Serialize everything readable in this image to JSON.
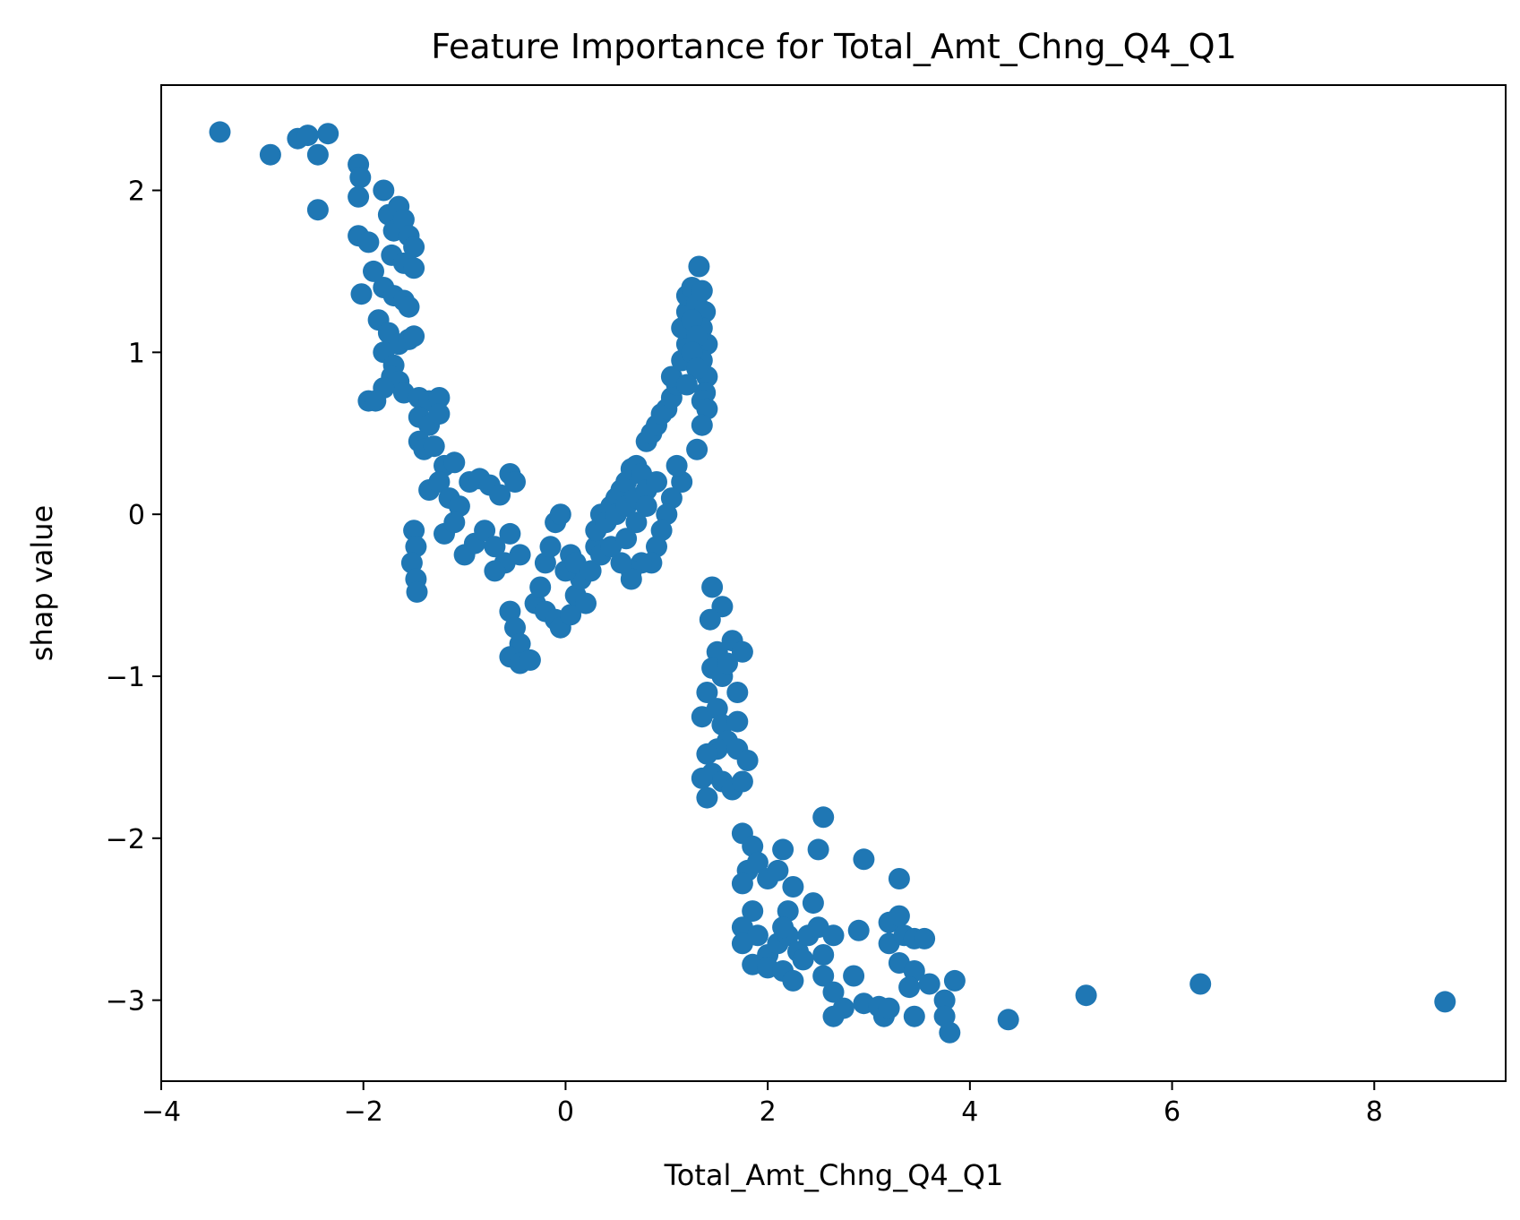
{
  "chart_data": {
    "type": "scatter",
    "title": "Feature Importance for Total_Amt_Chng_Q4_Q1",
    "xlabel": "Total_Amt_Chng_Q4_Q1",
    "ylabel": "shap value",
    "xlim": [
      -4.0,
      9.3
    ],
    "ylim": [
      -3.5,
      2.65
    ],
    "xticks": [
      -4,
      -2,
      0,
      2,
      4,
      6,
      8
    ],
    "xtick_labels": [
      "−4",
      "−2",
      "0",
      "2",
      "4",
      "6",
      "8"
    ],
    "yticks": [
      -3,
      -2,
      -1,
      0,
      1,
      2
    ],
    "ytick_labels": [
      "−3",
      "−2",
      "−1",
      "0",
      "1",
      "2"
    ],
    "grid": false,
    "legend": false,
    "marker_color": "#1f77b4",
    "series": [
      {
        "points": [
          [
            -3.42,
            2.36
          ],
          [
            -2.92,
            2.22
          ],
          [
            -2.65,
            2.32
          ],
          [
            -2.55,
            2.34
          ],
          [
            -2.45,
            2.22
          ],
          [
            -2.35,
            2.35
          ],
          [
            -2.45,
            1.88
          ],
          [
            -2.05,
            2.16
          ],
          [
            -2.03,
            2.08
          ],
          [
            -2.05,
            1.96
          ],
          [
            -2.05,
            1.72
          ],
          [
            -1.95,
            1.68
          ],
          [
            -1.9,
            1.5
          ],
          [
            -2.02,
            1.36
          ],
          [
            -1.8,
            2.0
          ],
          [
            -1.75,
            1.85
          ],
          [
            -1.7,
            1.75
          ],
          [
            -1.65,
            1.9
          ],
          [
            -1.6,
            1.82
          ],
          [
            -1.55,
            1.72
          ],
          [
            -1.5,
            1.65
          ],
          [
            -1.72,
            1.6
          ],
          [
            -1.6,
            1.55
          ],
          [
            -1.5,
            1.52
          ],
          [
            -1.8,
            1.4
          ],
          [
            -1.7,
            1.35
          ],
          [
            -1.6,
            1.32
          ],
          [
            -1.55,
            1.28
          ],
          [
            -1.85,
            1.2
          ],
          [
            -1.75,
            1.12
          ],
          [
            -1.65,
            1.05
          ],
          [
            -1.55,
            1.08
          ],
          [
            -1.5,
            1.1
          ],
          [
            -1.8,
            1.0
          ],
          [
            -1.7,
            0.92
          ],
          [
            -1.72,
            0.85
          ],
          [
            -1.65,
            0.82
          ],
          [
            -1.8,
            0.78
          ],
          [
            -1.6,
            0.75
          ],
          [
            -1.95,
            0.7
          ],
          [
            -1.88,
            0.7
          ],
          [
            -1.45,
            0.72
          ],
          [
            -1.35,
            0.7
          ],
          [
            -1.25,
            0.72
          ],
          [
            -1.45,
            0.6
          ],
          [
            -1.35,
            0.55
          ],
          [
            -1.25,
            0.62
          ],
          [
            -1.45,
            0.45
          ],
          [
            -1.4,
            0.4
          ],
          [
            -1.3,
            0.42
          ],
          [
            -1.2,
            0.3
          ],
          [
            -1.1,
            0.32
          ],
          [
            -1.35,
            0.15
          ],
          [
            -1.25,
            0.2
          ],
          [
            -1.15,
            0.1
          ],
          [
            -1.05,
            0.05
          ],
          [
            -0.95,
            0.2
          ],
          [
            -0.85,
            0.22
          ],
          [
            -0.75,
            0.18
          ],
          [
            -0.65,
            0.12
          ],
          [
            -0.55,
            0.25
          ],
          [
            -0.5,
            0.2
          ],
          [
            -1.2,
            -0.12
          ],
          [
            -1.1,
            -0.05
          ],
          [
            -1.0,
            -0.25
          ],
          [
            -0.9,
            -0.18
          ],
          [
            -0.8,
            -0.1
          ],
          [
            -0.7,
            -0.2
          ],
          [
            -0.6,
            -0.3
          ],
          [
            -0.7,
            -0.35
          ],
          [
            -0.55,
            -0.12
          ],
          [
            -0.45,
            -0.25
          ],
          [
            -1.5,
            -0.1
          ],
          [
            -1.48,
            -0.2
          ],
          [
            -1.52,
            -0.3
          ],
          [
            -1.48,
            -0.4
          ],
          [
            -1.47,
            -0.48
          ],
          [
            -0.55,
            -0.6
          ],
          [
            -0.5,
            -0.7
          ],
          [
            -0.45,
            -0.8
          ],
          [
            -0.55,
            -0.88
          ],
          [
            -0.45,
            -0.92
          ],
          [
            -0.35,
            -0.9
          ],
          [
            -0.3,
            -0.55
          ],
          [
            -0.25,
            -0.45
          ],
          [
            -0.2,
            -0.3
          ],
          [
            -0.15,
            -0.2
          ],
          [
            -0.1,
            -0.05
          ],
          [
            -0.05,
            0.0
          ],
          [
            -0.2,
            -0.6
          ],
          [
            -0.1,
            -0.65
          ],
          [
            -0.05,
            -0.7
          ],
          [
            0.05,
            -0.62
          ],
          [
            0.1,
            -0.5
          ],
          [
            0.15,
            -0.4
          ],
          [
            0.2,
            -0.55
          ],
          [
            0.0,
            -0.35
          ],
          [
            0.05,
            -0.25
          ],
          [
            0.1,
            -0.3
          ],
          [
            0.25,
            -0.35
          ],
          [
            0.3,
            -0.2
          ],
          [
            0.35,
            -0.25
          ],
          [
            0.3,
            -0.1
          ],
          [
            0.35,
            0.0
          ],
          [
            0.4,
            -0.05
          ],
          [
            0.45,
            0.05
          ],
          [
            0.5,
            0.1
          ],
          [
            0.55,
            0.15
          ],
          [
            0.6,
            0.2
          ],
          [
            0.65,
            0.28
          ],
          [
            0.7,
            0.3
          ],
          [
            0.75,
            0.25
          ],
          [
            0.8,
            0.45
          ],
          [
            0.85,
            0.5
          ],
          [
            0.9,
            0.55
          ],
          [
            0.95,
            0.62
          ],
          [
            1.0,
            0.65
          ],
          [
            1.05,
            0.72
          ],
          [
            1.1,
            0.8
          ],
          [
            1.05,
            0.85
          ],
          [
            1.15,
            0.95
          ],
          [
            1.2,
            1.05
          ],
          [
            1.15,
            1.15
          ],
          [
            1.2,
            1.25
          ],
          [
            1.2,
            1.35
          ],
          [
            1.25,
            1.4
          ],
          [
            1.3,
            1.3
          ],
          [
            1.35,
            1.38
          ],
          [
            1.38,
            1.25
          ],
          [
            1.35,
            1.15
          ],
          [
            1.4,
            1.05
          ],
          [
            1.35,
            0.95
          ],
          [
            1.4,
            0.85
          ],
          [
            1.38,
            0.75
          ],
          [
            1.35,
            0.7
          ],
          [
            1.4,
            0.65
          ],
          [
            1.35,
            0.55
          ],
          [
            1.3,
            0.4
          ],
          [
            1.32,
            1.53
          ],
          [
            1.25,
            1.2
          ],
          [
            1.3,
            1.1
          ],
          [
            1.25,
            1.0
          ],
          [
            1.3,
            0.9
          ],
          [
            1.2,
            0.8
          ],
          [
            1.15,
            0.2
          ],
          [
            1.1,
            0.3
          ],
          [
            1.05,
            0.1
          ],
          [
            1.0,
            0.0
          ],
          [
            0.95,
            -0.1
          ],
          [
            0.9,
            -0.2
          ],
          [
            0.85,
            -0.3
          ],
          [
            0.75,
            -0.3
          ],
          [
            0.65,
            -0.35
          ],
          [
            0.65,
            -0.4
          ],
          [
            0.55,
            -0.3
          ],
          [
            0.45,
            -0.2
          ],
          [
            0.5,
            0.0
          ],
          [
            0.6,
            0.05
          ],
          [
            0.7,
            0.1
          ],
          [
            0.8,
            0.15
          ],
          [
            0.9,
            0.2
          ],
          [
            0.8,
            0.05
          ],
          [
            0.7,
            -0.05
          ],
          [
            0.6,
            -0.15
          ],
          [
            1.45,
            -0.45
          ],
          [
            1.55,
            -0.57
          ],
          [
            1.43,
            -0.65
          ],
          [
            1.65,
            -0.78
          ],
          [
            1.75,
            -0.85
          ],
          [
            1.5,
            -0.85
          ],
          [
            1.45,
            -0.95
          ],
          [
            1.55,
            -1.0
          ],
          [
            1.6,
            -0.92
          ],
          [
            1.7,
            -1.1
          ],
          [
            1.4,
            -1.1
          ],
          [
            1.35,
            -1.25
          ],
          [
            1.5,
            -1.2
          ],
          [
            1.55,
            -1.3
          ],
          [
            1.7,
            -1.28
          ],
          [
            1.6,
            -1.4
          ],
          [
            1.5,
            -1.45
          ],
          [
            1.4,
            -1.48
          ],
          [
            1.7,
            -1.45
          ],
          [
            1.8,
            -1.52
          ],
          [
            1.45,
            -1.6
          ],
          [
            1.55,
            -1.65
          ],
          [
            1.65,
            -1.7
          ],
          [
            1.75,
            -1.65
          ],
          [
            1.35,
            -1.63
          ],
          [
            1.4,
            -1.75
          ],
          [
            1.75,
            -1.97
          ],
          [
            1.85,
            -2.05
          ],
          [
            1.8,
            -2.2
          ],
          [
            1.9,
            -2.15
          ],
          [
            2.0,
            -2.25
          ],
          [
            2.1,
            -2.2
          ],
          [
            2.15,
            -2.07
          ],
          [
            2.25,
            -2.3
          ],
          [
            1.75,
            -2.28
          ],
          [
            1.85,
            -2.45
          ],
          [
            1.75,
            -2.55
          ],
          [
            1.9,
            -2.6
          ],
          [
            1.75,
            -2.65
          ],
          [
            1.85,
            -2.78
          ],
          [
            2.0,
            -2.72
          ],
          [
            2.1,
            -2.65
          ],
          [
            2.2,
            -2.6
          ],
          [
            2.3,
            -2.7
          ],
          [
            2.4,
            -2.6
          ],
          [
            2.5,
            -2.55
          ],
          [
            2.45,
            -2.4
          ],
          [
            2.2,
            -2.45
          ],
          [
            2.15,
            -2.55
          ],
          [
            2.0,
            -2.8
          ],
          [
            2.15,
            -2.82
          ],
          [
            2.25,
            -2.88
          ],
          [
            2.35,
            -2.75
          ],
          [
            2.55,
            -2.72
          ],
          [
            2.65,
            -2.6
          ],
          [
            2.55,
            -2.85
          ],
          [
            2.55,
            -1.87
          ],
          [
            2.5,
            -2.07
          ],
          [
            2.65,
            -2.95
          ],
          [
            2.75,
            -3.05
          ],
          [
            2.65,
            -3.1
          ],
          [
            2.85,
            -2.85
          ],
          [
            2.9,
            -2.57
          ],
          [
            2.95,
            -2.13
          ],
          [
            2.95,
            -3.02
          ],
          [
            3.1,
            -3.04
          ],
          [
            3.15,
            -3.1
          ],
          [
            3.2,
            -3.05
          ],
          [
            3.3,
            -2.25
          ],
          [
            3.2,
            -2.52
          ],
          [
            3.3,
            -2.48
          ],
          [
            3.2,
            -2.65
          ],
          [
            3.35,
            -2.6
          ],
          [
            3.45,
            -2.62
          ],
          [
            3.55,
            -2.62
          ],
          [
            3.3,
            -2.77
          ],
          [
            3.45,
            -2.82
          ],
          [
            3.4,
            -2.92
          ],
          [
            3.6,
            -2.9
          ],
          [
            3.75,
            -3.0
          ],
          [
            3.75,
            -3.1
          ],
          [
            3.8,
            -3.2
          ],
          [
            3.45,
            -3.1
          ],
          [
            3.85,
            -2.88
          ],
          [
            4.38,
            -3.12
          ],
          [
            5.15,
            -2.97
          ],
          [
            6.28,
            -2.9
          ],
          [
            8.7,
            -3.01
          ]
        ]
      }
    ]
  }
}
